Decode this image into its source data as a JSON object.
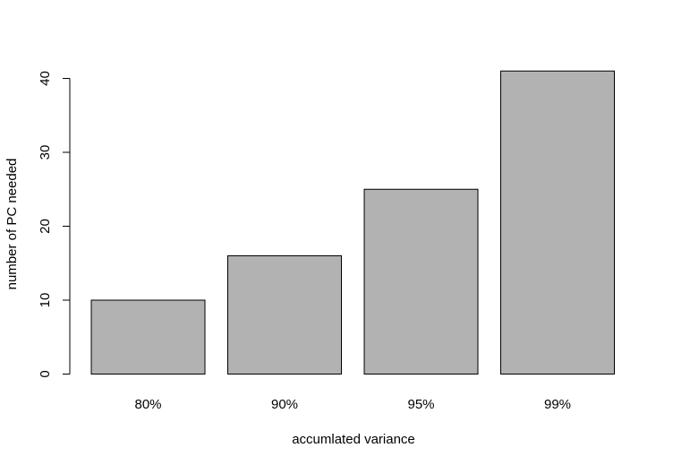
{
  "chart_data": {
    "type": "bar",
    "title": "",
    "xlabel": "accumlated variance",
    "ylabel": "number of PC needed",
    "categories": [
      "80%",
      "90%",
      "95%",
      "99%"
    ],
    "values": [
      10,
      16,
      25,
      41
    ],
    "ylim": [
      0,
      41
    ],
    "yticks": [
      0,
      10,
      20,
      30,
      40
    ],
    "ytick_labels": [
      "0",
      "10",
      "20",
      "30",
      "40"
    ],
    "grid": false,
    "legend": "none",
    "bar_color": "#b2b2b2",
    "bar_edge_color": "#000000"
  }
}
